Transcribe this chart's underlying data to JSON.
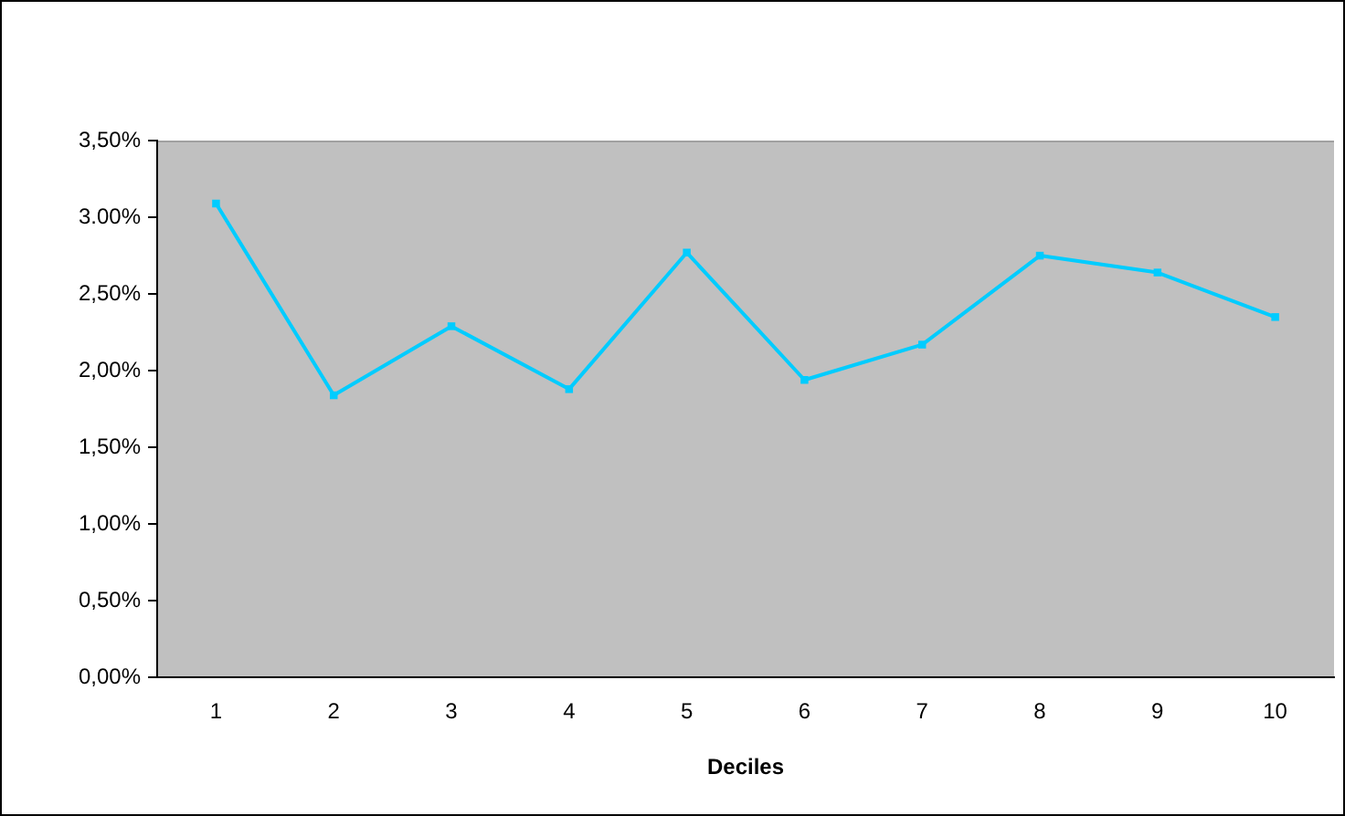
{
  "chart_data": {
    "type": "line",
    "xlabel": "Deciles",
    "categories": [
      "1",
      "2",
      "3",
      "4",
      "5",
      "6",
      "7",
      "8",
      "9",
      "10"
    ],
    "series": [
      {
        "color": "#00ccff",
        "values": [
          3.09,
          1.84,
          2.29,
          1.88,
          2.77,
          1.94,
          2.17,
          2.75,
          2.64,
          2.35
        ]
      }
    ],
    "ylim": [
      0,
      3.5
    ],
    "yticks": [
      {
        "value": 0,
        "label": "0,00%"
      },
      {
        "value": 0.5,
        "label": "0,50%"
      },
      {
        "value": 1,
        "label": "1,00%"
      },
      {
        "value": 1.5,
        "label": "1,50%"
      },
      {
        "value": 2,
        "label": "2,00%"
      },
      {
        "value": 2.5,
        "label": "2,50%"
      },
      {
        "value": 3,
        "label": "3.00%"
      },
      {
        "value": 3.5,
        "label": "3,50%"
      }
    ],
    "grid": false,
    "legend": false,
    "marker": "square",
    "line_style": "solid"
  }
}
